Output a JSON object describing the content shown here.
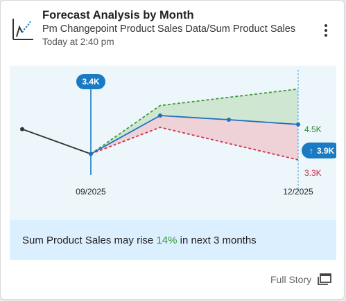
{
  "header": {
    "title": "Forecast Analysis by Month",
    "subtitle": "Pm Changepoint Product Sales Data/Sum Product Sales",
    "timestamp": "Today at 2:40 pm",
    "icon": "forecast-chart-icon",
    "menu_icon": "more-vertical-icon"
  },
  "chart_data": {
    "type": "line",
    "x_ticks": [
      "09/2025",
      "12/2025"
    ],
    "series": [
      {
        "role": "actual",
        "color": "#333333",
        "points": [
          3.82,
          3.4
        ]
      },
      {
        "role": "forecast",
        "color": "#1f6fbf",
        "points": [
          3.4,
          4.05,
          3.98,
          3.9
        ]
      },
      {
        "role": "upper-bound",
        "color": "#3a9a3a",
        "points": [
          3.4,
          4.22,
          4.5
        ]
      },
      {
        "role": "lower-bound",
        "color": "#d0304a",
        "points": [
          3.4,
          3.85,
          3.3
        ]
      }
    ],
    "marker_label": "3.4K",
    "end_value_label": "3.9K",
    "upper_label": "4.5K",
    "lower_label": "3.3K",
    "colors": {
      "upper_band": "#cfe6d2",
      "lower_band": "#efd2d8",
      "accent": "#1a7ac4"
    }
  },
  "insight": {
    "prefix": "Sum Product Sales may rise ",
    "percent": "14%",
    "suffix": " in next 3 months"
  },
  "footer": {
    "link_label": "Full Story",
    "link_icon": "open-window-icon"
  }
}
